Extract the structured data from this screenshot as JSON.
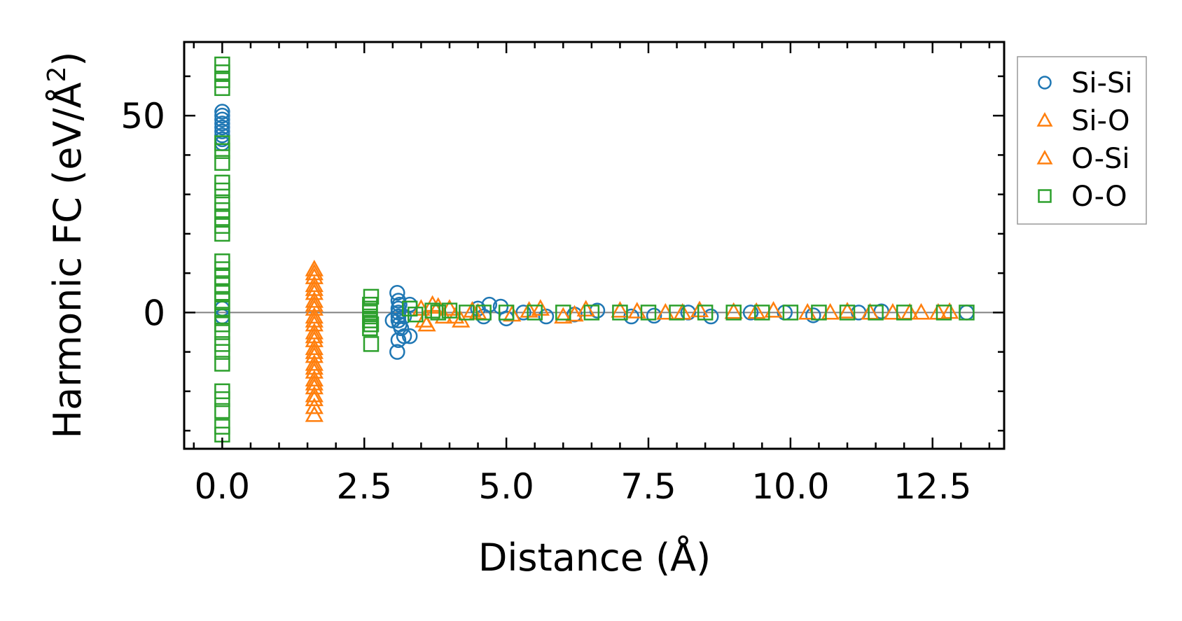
{
  "chart_data": {
    "type": "scatter",
    "title": "",
    "xlabel": "Distance (Å)",
    "ylabel_main": "Harmonic FC (eV/Å",
    "ylabel_sup": "2",
    "ylabel_close": ")",
    "xlim": [
      -0.67,
      13.76
    ],
    "ylim": [
      -34.6,
      68.7
    ],
    "xticks": [
      0.0,
      2.5,
      5.0,
      7.5,
      10.0,
      12.5
    ],
    "xtick_labels": [
      "0.0",
      "2.5",
      "5.0",
      "7.5",
      "10.0",
      "12.5"
    ],
    "xminor_step": 0.5,
    "yticks": [
      0,
      50
    ],
    "ytick_labels": [
      "0",
      "50"
    ],
    "yminor_step": 10,
    "zero_line": true,
    "legend_position": "outside-right-top",
    "series": [
      {
        "name": "Si-Si",
        "marker": "circle",
        "color": "#1f77b4",
        "points": [
          [
            0,
            51
          ],
          [
            0,
            50
          ],
          [
            0,
            49
          ],
          [
            0,
            48
          ],
          [
            0,
            47
          ],
          [
            0,
            46
          ],
          [
            0,
            45
          ],
          [
            0,
            44
          ],
          [
            0,
            43
          ],
          [
            0,
            1
          ],
          [
            0,
            -1
          ],
          [
            3.08,
            5
          ],
          [
            3.1,
            3
          ],
          [
            3.12,
            2
          ],
          [
            3.1,
            1
          ],
          [
            3.1,
            0
          ],
          [
            3.1,
            -1
          ],
          [
            3.1,
            -2
          ],
          [
            3.12,
            -3
          ],
          [
            3.15,
            -4
          ],
          [
            3.2,
            -6
          ],
          [
            3.1,
            -7
          ],
          [
            3.08,
            -10
          ],
          [
            3.2,
            -1
          ],
          [
            3.3,
            2
          ],
          [
            3.3,
            -6
          ],
          [
            3.0,
            -2
          ],
          [
            4.5,
            1
          ],
          [
            4.7,
            2
          ],
          [
            4.9,
            1.5
          ],
          [
            5.0,
            -1.5
          ],
          [
            4.6,
            -1
          ],
          [
            5.3,
            0
          ],
          [
            5.7,
            -1
          ],
          [
            6.2,
            -0.5
          ],
          [
            6.6,
            0.5
          ],
          [
            7.2,
            -1
          ],
          [
            7.6,
            -0.8
          ],
          [
            8.2,
            0
          ],
          [
            8.6,
            -1
          ],
          [
            9.3,
            0
          ],
          [
            9.9,
            0
          ],
          [
            10.4,
            -0.7
          ],
          [
            11.2,
            0
          ],
          [
            11.6,
            0.3
          ],
          [
            13.1,
            0
          ]
        ]
      },
      {
        "name": "Si-O",
        "marker": "triangle",
        "color": "#ff7f0e",
        "points": [
          [
            1.62,
            11
          ],
          [
            1.62,
            9
          ],
          [
            1.62,
            7
          ],
          [
            1.62,
            5
          ],
          [
            1.62,
            3
          ],
          [
            1.62,
            1
          ],
          [
            1.62,
            -1
          ],
          [
            1.62,
            -3
          ],
          [
            1.62,
            -5
          ],
          [
            1.62,
            -7
          ],
          [
            1.62,
            -9
          ],
          [
            1.62,
            -11
          ],
          [
            1.62,
            -13
          ],
          [
            1.62,
            -15
          ],
          [
            1.62,
            -17
          ],
          [
            1.62,
            -19
          ],
          [
            1.62,
            -21
          ],
          [
            1.62,
            -24
          ],
          [
            1.62,
            -26
          ],
          [
            3.5,
            1
          ],
          [
            3.6,
            -3
          ],
          [
            3.7,
            2
          ],
          [
            3.9,
            -1
          ],
          [
            4.0,
            1
          ],
          [
            4.2,
            -2
          ],
          [
            4.4,
            0.5
          ],
          [
            5.1,
            -0.5
          ],
          [
            5.6,
            1
          ],
          [
            6.0,
            -1
          ],
          [
            6.4,
            0.8
          ],
          [
            7.0,
            0.5
          ],
          [
            7.8,
            0
          ],
          [
            8.4,
            0.6
          ],
          [
            9.0,
            0.2
          ],
          [
            9.7,
            0.5
          ],
          [
            10.3,
            0
          ],
          [
            11.0,
            0.3
          ],
          [
            11.8,
            0
          ],
          [
            12.1,
            0
          ],
          [
            12.6,
            0
          ],
          [
            12.8,
            0.2
          ]
        ]
      },
      {
        "name": "O-Si",
        "marker": "triangle",
        "color": "#ff7f0e",
        "points": [
          [
            1.62,
            10
          ],
          [
            1.62,
            6
          ],
          [
            1.62,
            2
          ],
          [
            1.62,
            -2
          ],
          [
            1.62,
            -6
          ],
          [
            1.62,
            -10
          ],
          [
            1.62,
            -14
          ],
          [
            1.62,
            -18
          ],
          [
            1.62,
            -22
          ],
          [
            3.55,
            -2
          ],
          [
            3.8,
            1.5
          ],
          [
            4.1,
            -1
          ],
          [
            4.5,
            0
          ],
          [
            5.4,
            0.5
          ],
          [
            6.2,
            -0.5
          ],
          [
            7.3,
            0.3
          ],
          [
            8.1,
            0
          ],
          [
            9.4,
            0.2
          ],
          [
            10.7,
            0
          ],
          [
            11.4,
            0
          ],
          [
            12.3,
            0
          ]
        ]
      },
      {
        "name": "O-O",
        "marker": "square",
        "color": "#2ca02c",
        "points": [
          [
            0,
            63
          ],
          [
            0,
            61
          ],
          [
            0,
            59
          ],
          [
            0,
            57
          ],
          [
            0,
            43
          ],
          [
            0,
            41
          ],
          [
            0,
            38
          ],
          [
            0,
            33
          ],
          [
            0,
            31
          ],
          [
            0,
            28
          ],
          [
            0,
            26
          ],
          [
            0,
            24
          ],
          [
            0,
            22
          ],
          [
            0,
            20
          ],
          [
            0,
            13
          ],
          [
            0,
            11
          ],
          [
            0,
            9
          ],
          [
            0,
            7
          ],
          [
            0,
            5
          ],
          [
            0,
            3
          ],
          [
            0,
            1
          ],
          [
            0,
            -1
          ],
          [
            0,
            -3
          ],
          [
            0,
            -5
          ],
          [
            0,
            -8
          ],
          [
            0,
            -10
          ],
          [
            0,
            -13
          ],
          [
            0,
            -20
          ],
          [
            0,
            -22
          ],
          [
            0,
            -25
          ],
          [
            0,
            -29
          ],
          [
            0,
            -31
          ],
          [
            2.62,
            4
          ],
          [
            2.6,
            2
          ],
          [
            2.6,
            1
          ],
          [
            2.6,
            0
          ],
          [
            2.6,
            -1
          ],
          [
            2.6,
            -2
          ],
          [
            2.62,
            -3
          ],
          [
            2.6,
            -4
          ],
          [
            2.62,
            -8
          ],
          [
            3.3,
            1
          ],
          [
            3.4,
            -0.5
          ],
          [
            3.7,
            0.5
          ],
          [
            3.8,
            0
          ],
          [
            4.0,
            0.5
          ],
          [
            4.3,
            0
          ],
          [
            4.6,
            0
          ],
          [
            5.0,
            0
          ],
          [
            5.5,
            0
          ],
          [
            6.0,
            0
          ],
          [
            6.5,
            0
          ],
          [
            7.0,
            0
          ],
          [
            7.5,
            0
          ],
          [
            8.0,
            0
          ],
          [
            8.5,
            0
          ],
          [
            9.0,
            0
          ],
          [
            9.5,
            0
          ],
          [
            10.0,
            0
          ],
          [
            10.5,
            0
          ],
          [
            11.0,
            0
          ],
          [
            11.5,
            0
          ],
          [
            12.0,
            0
          ],
          [
            12.7,
            0
          ],
          [
            13.1,
            0
          ]
        ]
      }
    ]
  }
}
